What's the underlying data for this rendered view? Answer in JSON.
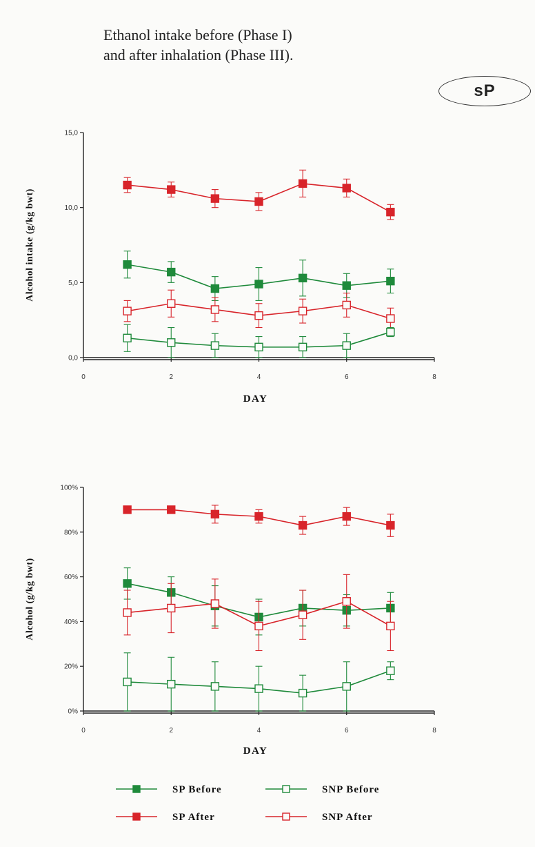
{
  "header": {
    "title_line1": "Ethanol intake before (Phase I)",
    "title_line2": "and after inhalation (Phase III).",
    "badge": "sP"
  },
  "colors": {
    "green": "#1f8a3b",
    "red": "#d8242a"
  },
  "legend": [
    {
      "name": "SP Before",
      "color": "#1f8a3b",
      "marker": "filled-square"
    },
    {
      "name": "SNP Before",
      "color": "#1f8a3b",
      "marker": "open-square"
    },
    {
      "name": "SP After",
      "color": "#d8242a",
      "marker": "filled-square"
    },
    {
      "name": "SNP After",
      "color": "#d8242a",
      "marker": "open-square"
    }
  ],
  "chart_data": [
    {
      "type": "line",
      "xlabel": "DAY",
      "ylabel": "Alcohol intake (g/kg bwt)",
      "xlim": [
        0,
        8
      ],
      "ylim": [
        0,
        15
      ],
      "xticks": [
        "0",
        "2",
        "4",
        "6",
        "8"
      ],
      "yticks": [
        "0,0",
        "5,0",
        "10,0",
        "15,0"
      ],
      "x": [
        1,
        2,
        3,
        4,
        5,
        6,
        7
      ],
      "series": [
        {
          "name": "SP After",
          "color": "#d8242a",
          "marker": "filled",
          "values": [
            11.5,
            11.2,
            10.6,
            10.4,
            11.6,
            11.3,
            9.7
          ],
          "err": [
            0.5,
            0.5,
            0.6,
            0.6,
            0.9,
            0.6,
            0.5
          ]
        },
        {
          "name": "SP Before",
          "color": "#1f8a3b",
          "marker": "filled",
          "values": [
            6.2,
            5.7,
            4.6,
            4.9,
            5.3,
            4.8,
            5.1
          ],
          "err": [
            0.9,
            0.7,
            0.8,
            1.1,
            1.2,
            0.8,
            0.8
          ]
        },
        {
          "name": "SNP After",
          "color": "#d8242a",
          "marker": "open",
          "values": [
            3.1,
            3.6,
            3.2,
            2.8,
            3.1,
            3.5,
            2.6
          ],
          "err": [
            0.7,
            0.9,
            0.8,
            0.8,
            0.8,
            0.8,
            0.7
          ]
        },
        {
          "name": "SNP Before",
          "color": "#1f8a3b",
          "marker": "open",
          "values": [
            1.3,
            1.0,
            0.8,
            0.7,
            0.7,
            0.8,
            1.7
          ],
          "err": [
            0.9,
            1.0,
            0.8,
            0.7,
            0.7,
            0.8,
            0.3
          ]
        }
      ]
    },
    {
      "type": "line",
      "xlabel": "DAY",
      "ylabel": "Alcohol (g/kg bwt)",
      "xlim": [
        0,
        8
      ],
      "ylim": [
        0,
        100
      ],
      "xticks": [
        "0",
        "2",
        "4",
        "6",
        "8"
      ],
      "yticks": [
        "0%",
        "20%",
        "40%",
        "60%",
        "80%",
        "100%"
      ],
      "x": [
        1,
        2,
        3,
        4,
        5,
        6,
        7
      ],
      "series": [
        {
          "name": "SP After",
          "color": "#d8242a",
          "marker": "filled",
          "values": [
            90,
            90,
            88,
            87,
            83,
            87,
            83
          ],
          "err": [
            1,
            1,
            4,
            3,
            4,
            4,
            5
          ]
        },
        {
          "name": "SP Before",
          "color": "#1f8a3b",
          "marker": "filled",
          "values": [
            57,
            53,
            47,
            42,
            46,
            45,
            46
          ],
          "err": [
            7,
            7,
            9,
            8,
            8,
            7,
            7
          ]
        },
        {
          "name": "SNP After",
          "color": "#d8242a",
          "marker": "open",
          "values": [
            44,
            46,
            48,
            38,
            43,
            49,
            38
          ],
          "err": [
            10,
            11,
            11,
            11,
            11,
            12,
            11
          ]
        },
        {
          "name": "SNP Before",
          "color": "#1f8a3b",
          "marker": "open",
          "values": [
            13,
            12,
            11,
            10,
            8,
            11,
            18
          ],
          "err": [
            13,
            12,
            11,
            10,
            8,
            11,
            4
          ]
        }
      ]
    }
  ]
}
